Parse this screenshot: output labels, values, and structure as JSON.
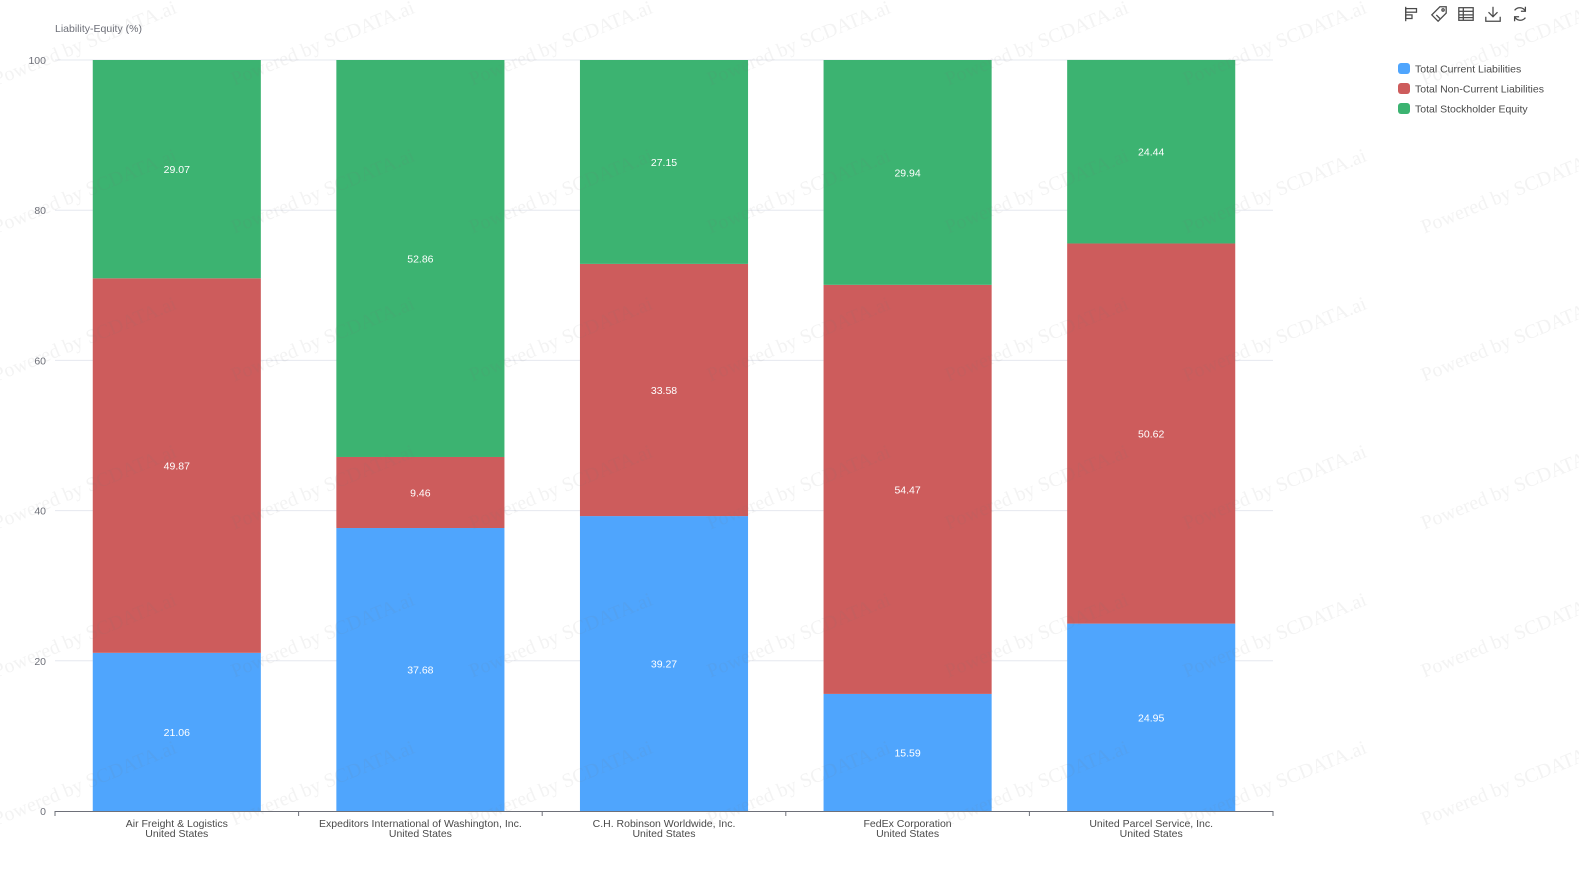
{
  "toolbar": {
    "icons": [
      "bar-chart-icon",
      "tag-icon",
      "data-table-icon",
      "download-icon",
      "refresh-icon"
    ]
  },
  "watermark": "Powered by SCDATA.ai",
  "colors": {
    "current": "#4fa5fd",
    "noncurrent": "#cd5c5c",
    "equity": "#3cb371",
    "axis": "#6e7079",
    "grid": "#e6e8ef",
    "text": "#4a4a4a"
  },
  "chart_data": {
    "type": "bar",
    "stacked": true,
    "ylabel": "Liability-Equity (%)",
    "ylim": [
      0,
      100
    ],
    "yticks": [
      0,
      20,
      40,
      60,
      80,
      100
    ],
    "grid": true,
    "legend_position": "top-right",
    "categories": [
      [
        "Air Freight & Logistics",
        "United States"
      ],
      [
        "Expeditors International of Washington, Inc.",
        "United States"
      ],
      [
        "C.H. Robinson Worldwide, Inc.",
        "United States"
      ],
      [
        "FedEx Corporation",
        "United States"
      ],
      [
        "United Parcel Service, Inc.",
        "United States"
      ]
    ],
    "series": [
      {
        "name": "Total Current Liabilities",
        "color": "#4fa5fd",
        "values": [
          21.06,
          37.68,
          39.27,
          15.59,
          24.95
        ]
      },
      {
        "name": "Total Non-Current Liabilities",
        "color": "#cd5c5c",
        "values": [
          49.87,
          9.46,
          33.58,
          54.47,
          50.62
        ]
      },
      {
        "name": "Total Stockholder Equity",
        "color": "#3cb371",
        "values": [
          29.07,
          52.86,
          27.15,
          29.94,
          24.44
        ]
      }
    ]
  }
}
